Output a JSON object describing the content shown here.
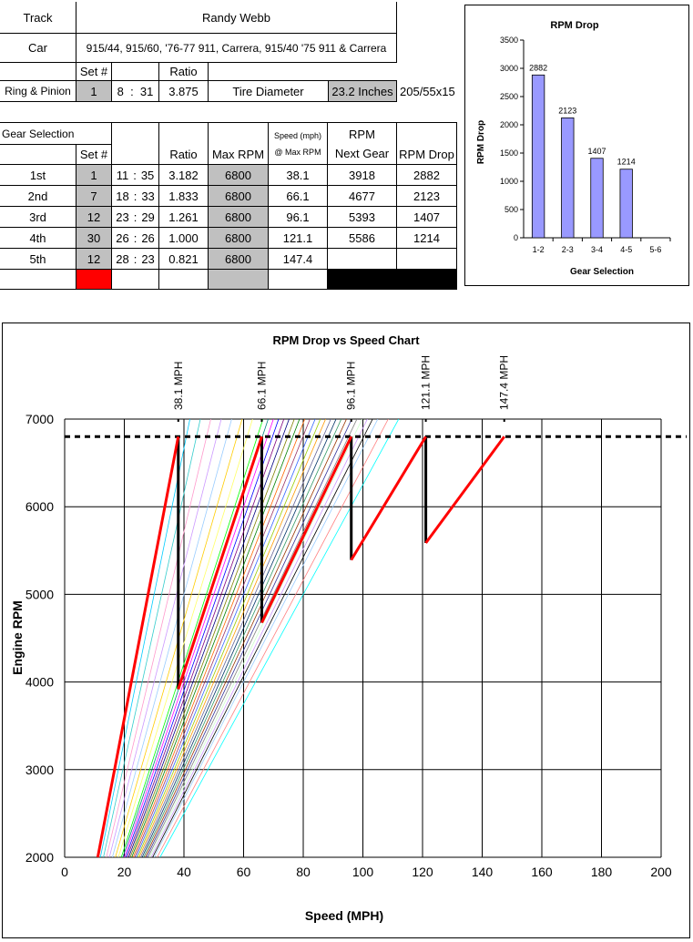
{
  "sheet": {
    "track_label": "Track",
    "track_value": "Randy Webb",
    "car_label": "Car",
    "car_value": "915/44, 915/60,  '76-77 911, Carrera,  915/40 '75 911 & Carrera",
    "setnum_header": "Set #",
    "ratio_header": "Ratio",
    "ring_pinion_label": "Ring & Pinion",
    "rp_set": "1",
    "rp_teeth_a": "8",
    "rp_colon": ":",
    "rp_teeth_b": "31",
    "rp_ratio": "3.875",
    "tire_label": "Tire Diameter",
    "tire_value": "23.2 Inches",
    "tire_size": "205/55x15",
    "gear_selection_label": "Gear Selection",
    "col_set": "Set #",
    "col_ratio": "Ratio",
    "col_maxrpm": "Max RPM",
    "col_speed_1": "Speed (mph)",
    "col_speed_2": "@ Max RPM",
    "col_rpm_1": "RPM",
    "col_rpm_2": "Next Gear",
    "col_drop": "RPM Drop",
    "gears": [
      {
        "name": "1st",
        "set": "1",
        "a": "11",
        "colon": ":",
        "b": "35",
        "ratio": "3.182",
        "max": "6800",
        "speed": "38.1",
        "next": "3918",
        "drop": "2882"
      },
      {
        "name": "2nd",
        "set": "7",
        "a": "18",
        "colon": ":",
        "b": "33",
        "ratio": "1.833",
        "max": "6800",
        "speed": "66.1",
        "next": "4677",
        "drop": "2123"
      },
      {
        "name": "3rd",
        "set": "12",
        "a": "23",
        "colon": ":",
        "b": "29",
        "ratio": "1.261",
        "max": "6800",
        "speed": "96.1",
        "next": "5393",
        "drop": "1407"
      },
      {
        "name": "4th",
        "set": "30",
        "a": "26",
        "colon": ":",
        "b": "26",
        "ratio": "1.000",
        "max": "6800",
        "speed": "121.1",
        "next": "5586",
        "drop": "1214"
      },
      {
        "name": "5th",
        "set": "12",
        "a": "28",
        "colon": ":",
        "b": "23",
        "ratio": "0.821",
        "max": "6800",
        "speed": "147.4",
        "next": "",
        "drop": ""
      }
    ]
  },
  "chart_data": [
    {
      "type": "bar",
      "title": "RPM Drop",
      "xlabel": "Gear Selection",
      "ylabel": "RPM Drop",
      "categories": [
        "1-2",
        "2-3",
        "3-4",
        "4-5",
        "5-6"
      ],
      "values": [
        2882,
        2123,
        1407,
        1214,
        null
      ],
      "data_labels": [
        "2882",
        "2123",
        "1407",
        "1214",
        ""
      ],
      "ylim": [
        0,
        3500
      ],
      "yticks": [
        "0",
        "500",
        "1000",
        "1500",
        "2000",
        "2500",
        "3000",
        "3500"
      ],
      "bar_color": "#9999ff",
      "grid": false
    },
    {
      "type": "line",
      "title": "RPM Drop vs Speed Chart",
      "xlabel": "Speed (MPH)",
      "ylabel": "Engine RPM",
      "xlim": [
        0,
        200
      ],
      "ylim": [
        2000,
        7000
      ],
      "xticks": [
        "0",
        "20",
        "40",
        "60",
        "80",
        "100",
        "120",
        "140",
        "160",
        "180",
        "200"
      ],
      "yticks": [
        "2000",
        "3000",
        "4000",
        "5000",
        "6000",
        "7000"
      ],
      "grid": true,
      "max_rpm": 6800,
      "shift_speed_labels": [
        "38.1 MPH",
        "66.1 MPH",
        "96.1 MPH",
        "121.1 MPH",
        "147.4 MPH"
      ],
      "shift_speeds": [
        38.1,
        66.1,
        96.1,
        121.1,
        147.4
      ],
      "shift_series": {
        "color": "#ff0000",
        "segments": [
          [
            [
              11.1,
              2000
            ],
            [
              38.1,
              6800
            ]
          ],
          [
            [
              38.1,
              3918
            ],
            [
              66.1,
              6800
            ]
          ],
          [
            [
              66.1,
              4677
            ],
            [
              96.1,
              6800
            ]
          ],
          [
            [
              96.1,
              5393
            ],
            [
              121.1,
              6800
            ]
          ],
          [
            [
              121.1,
              5586
            ],
            [
              147.4,
              6800
            ]
          ]
        ]
      },
      "drop_series": {
        "color": "#000000",
        "segments": [
          [
            [
              38.1,
              6800
            ],
            [
              38.1,
              3918
            ]
          ],
          [
            [
              66.1,
              6800
            ],
            [
              66.1,
              4677
            ]
          ],
          [
            [
              96.1,
              6800
            ],
            [
              96.1,
              5393
            ]
          ],
          [
            [
              121.1,
              6800
            ],
            [
              121.1,
              5586
            ]
          ]
        ]
      },
      "background_gear_lines": {
        "speed_at_2000": [
          12,
          13,
          14,
          15,
          16,
          17,
          18,
          19,
          19.5,
          20,
          20.5,
          21,
          21.5,
          22,
          22.5,
          23,
          23.5,
          24,
          24.5,
          25,
          25.5,
          26,
          26.5,
          27,
          27.5,
          28,
          28.5,
          29,
          29.5,
          30,
          31,
          32
        ],
        "colors": [
          "#00ccff",
          "#33cccc",
          "#ff99cc",
          "#cc99ff",
          "#99ccff",
          "#ffcc00",
          "#ffff66",
          "#00ff00",
          "#008080",
          "#ff00ff",
          "#0000ff",
          "#800080",
          "#000080",
          "#808000",
          "#008000",
          "#ff6600",
          "#993366",
          "#3366ff",
          "#99cc00",
          "#ff9900",
          "#666699",
          "#003366",
          "#339966",
          "#993300",
          "#333399",
          "#808080",
          "#ccffcc",
          "#cc99ff",
          "#000000",
          "#99ccff",
          "#ff8080",
          "#00ffff"
        ]
      }
    }
  ]
}
